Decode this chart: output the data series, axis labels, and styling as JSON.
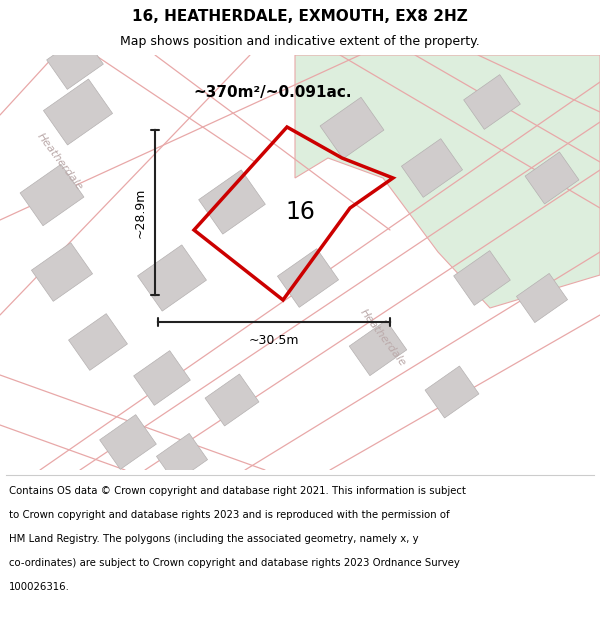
{
  "title": "16, HEATHERDALE, EXMOUTH, EX8 2HZ",
  "subtitle": "Map shows position and indicative extent of the property.",
  "footer_lines": [
    "Contains OS data © Crown copyright and database right 2021. This information is subject",
    "to Crown copyright and database rights 2023 and is reproduced with the permission of",
    "HM Land Registry. The polygons (including the associated geometry, namely x, y",
    "co-ordinates) are subject to Crown copyright and database rights 2023 Ordnance Survey",
    "100026316."
  ],
  "area_label": "~370m²/~0.091ac.",
  "number_label": "16",
  "dim_width": "~30.5m",
  "dim_height": "~28.9m",
  "road_label": "Heatherdale",
  "map_bg": "#edeaea",
  "green_color": "#ddeedd",
  "building_color": "#d0cccc",
  "road_color": "#e8a8a8",
  "property_color": "#cc0000",
  "dim_color": "#222222",
  "road_text_color": "#bbaaaa",
  "title_fontsize": 11,
  "subtitle_fontsize": 9,
  "footer_fontsize": 7.3
}
